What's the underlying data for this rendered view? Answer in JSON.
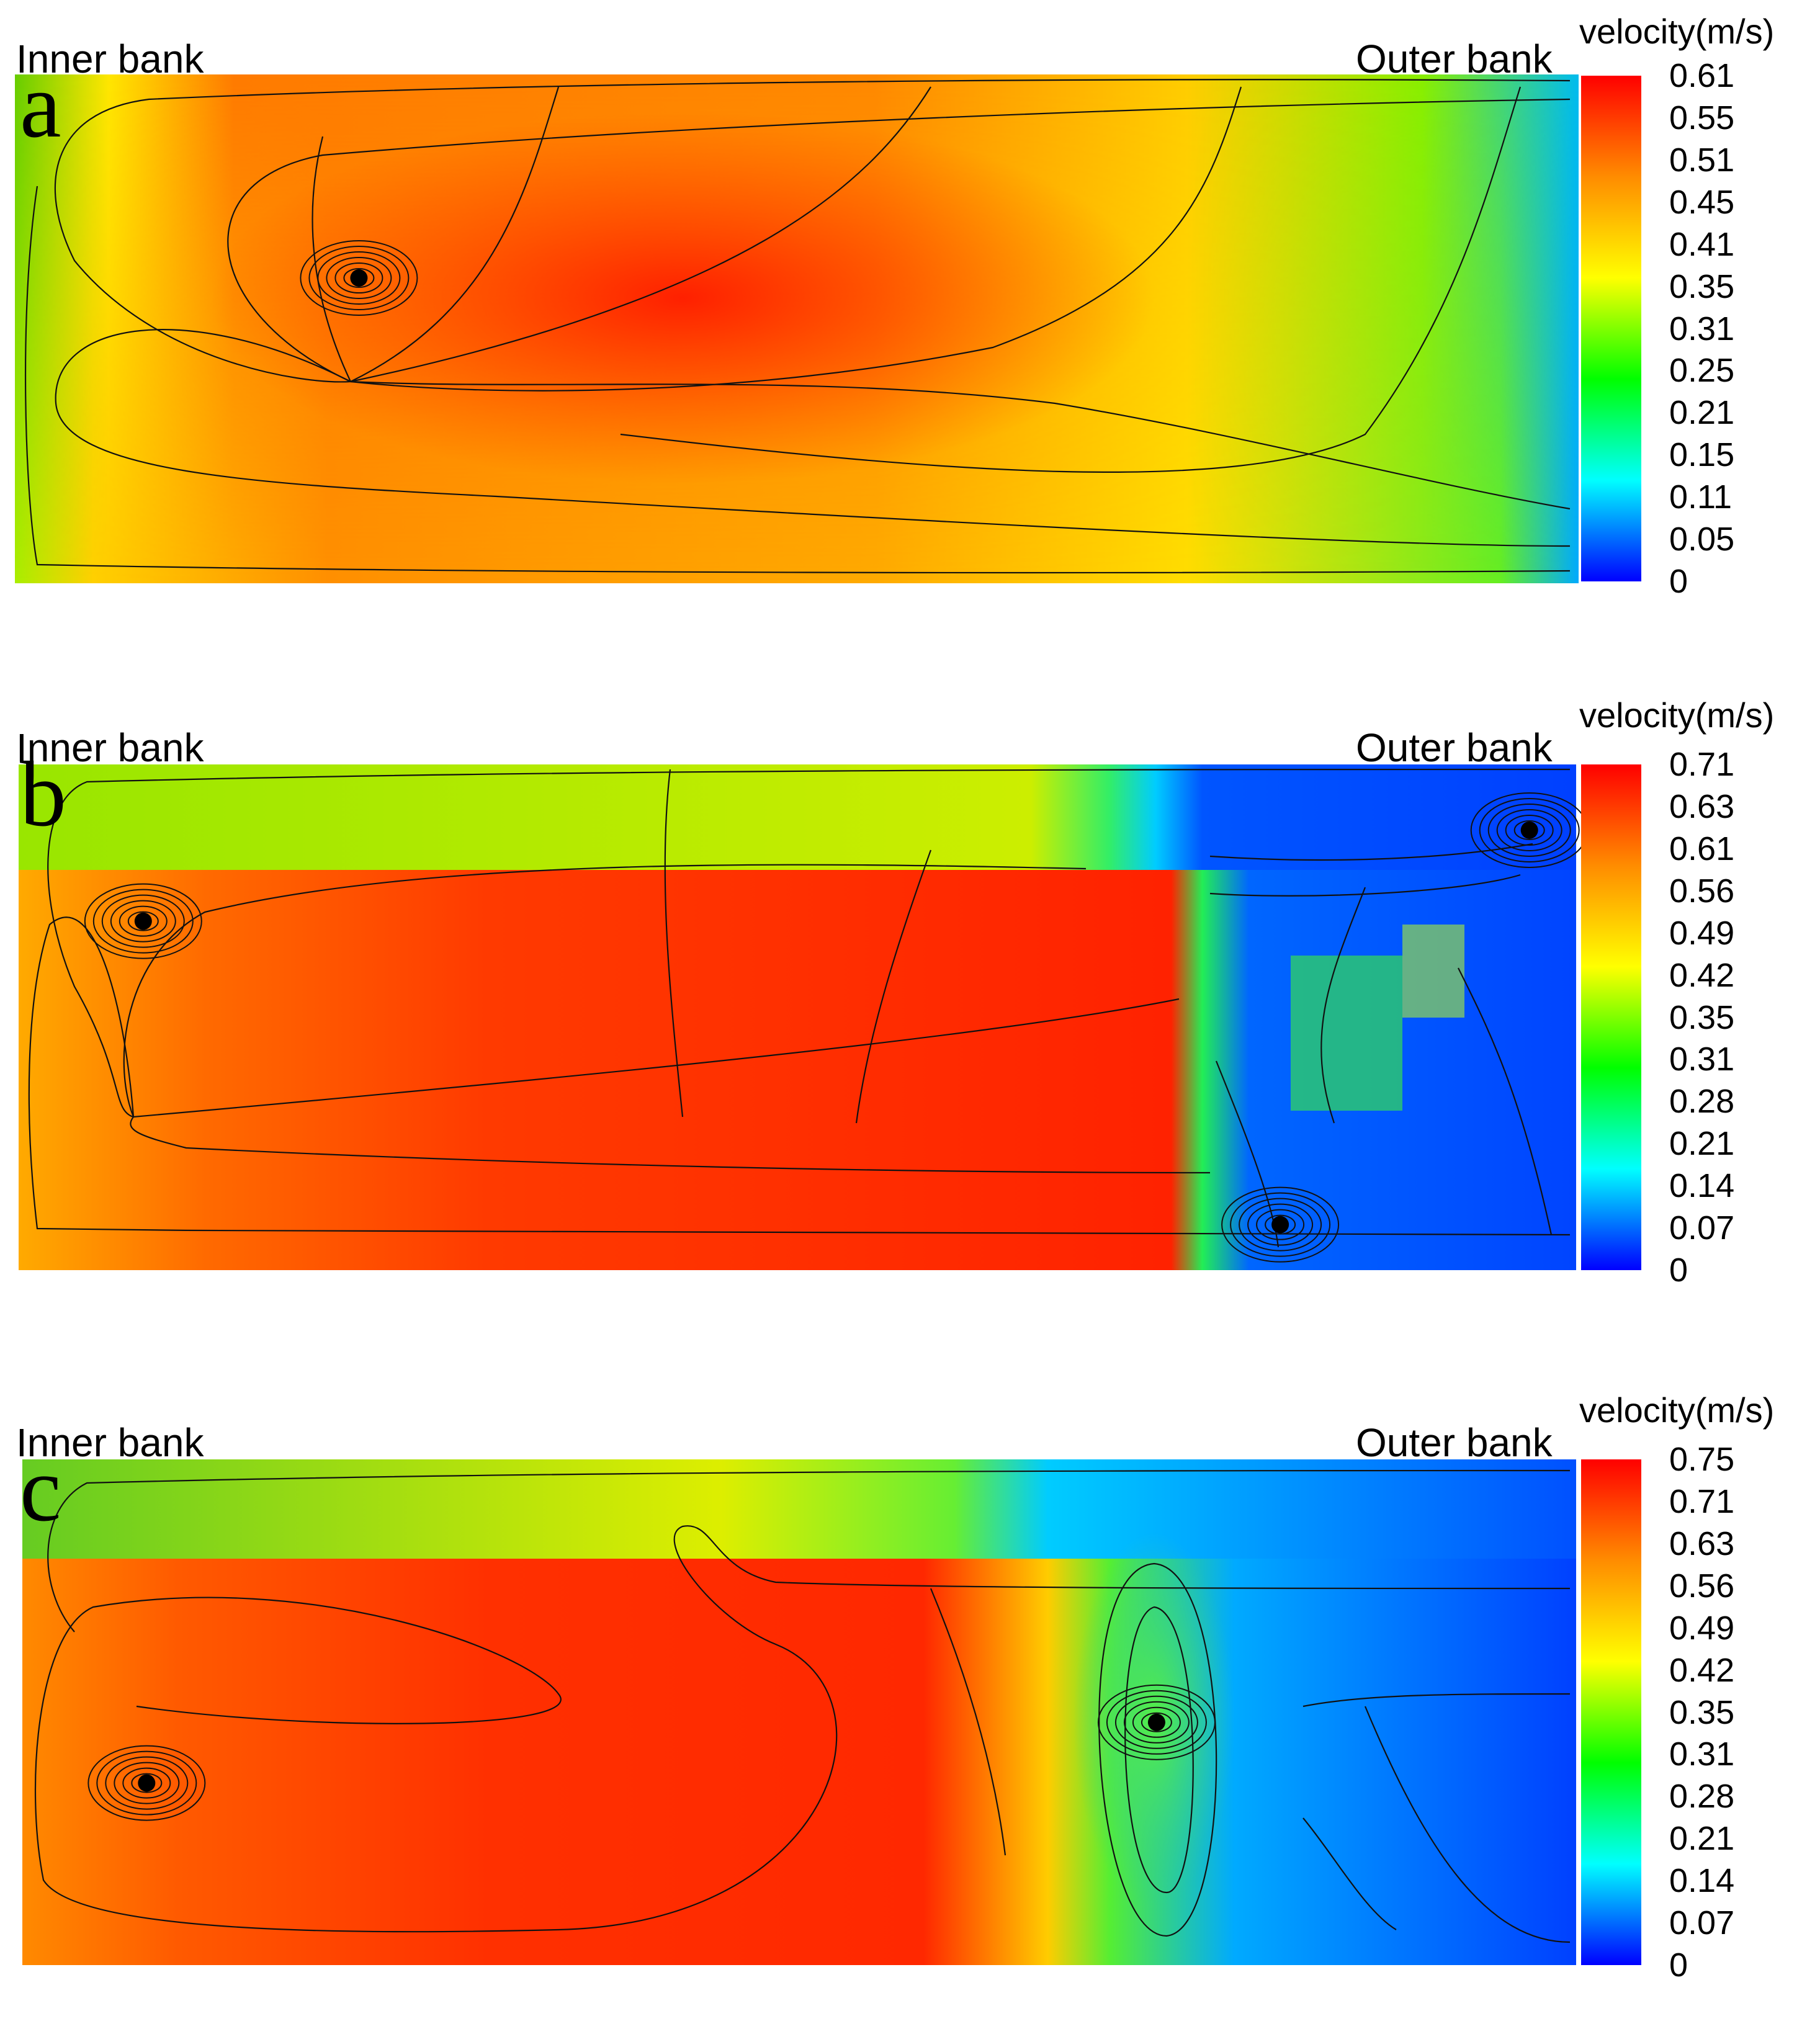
{
  "colormap": [
    "#0000ff",
    "#00ffff",
    "#00ff00",
    "#ffff00",
    "#ff8c00",
    "#ff0000"
  ],
  "chart_data": [
    {
      "type": "heatmap",
      "panel_label": "a",
      "left_label": "Inner bank",
      "right_label": "Outer bank",
      "colorbar_title": "velocity(m/s)",
      "colorbar_ticks": [
        "0.61",
        "0.55",
        "0.51",
        "0.45",
        "0.41",
        "0.35",
        "0.31",
        "0.25",
        "0.21",
        "0.15",
        "0.11",
        "0.05",
        "0"
      ],
      "vmax": 0.61,
      "vortices": [
        {
          "x": 0.22,
          "y": 0.6
        }
      ]
    },
    {
      "type": "heatmap",
      "panel_label": "b",
      "left_label": "Inner bank",
      "right_label": "Outer bank",
      "colorbar_title": "velocity(m/s)",
      "colorbar_ticks": [
        "0.71",
        "0.63",
        "0.61",
        "0.56",
        "0.49",
        "0.42",
        "0.35",
        "0.31",
        "0.28",
        "0.21",
        "0.14",
        "0.07",
        "0"
      ],
      "vmax": 0.71,
      "vortices": [
        {
          "x": 0.08,
          "y": 0.69
        },
        {
          "x": 0.97,
          "y": 0.87
        },
        {
          "x": 0.81,
          "y": 0.09
        }
      ]
    },
    {
      "type": "heatmap",
      "panel_label": "c",
      "left_label": "Inner bank",
      "right_label": "Outer bank",
      "colorbar_title": "velocity(m/s)",
      "colorbar_ticks": [
        "0.75",
        "0.71",
        "0.63",
        "0.56",
        "0.49",
        "0.42",
        "0.35",
        "0.31",
        "0.28",
        "0.21",
        "0.14",
        "0.07",
        "0"
      ],
      "vmax": 0.75,
      "vortices": [
        {
          "x": 0.08,
          "y": 0.36
        },
        {
          "x": 0.73,
          "y": 0.48
        }
      ]
    }
  ]
}
